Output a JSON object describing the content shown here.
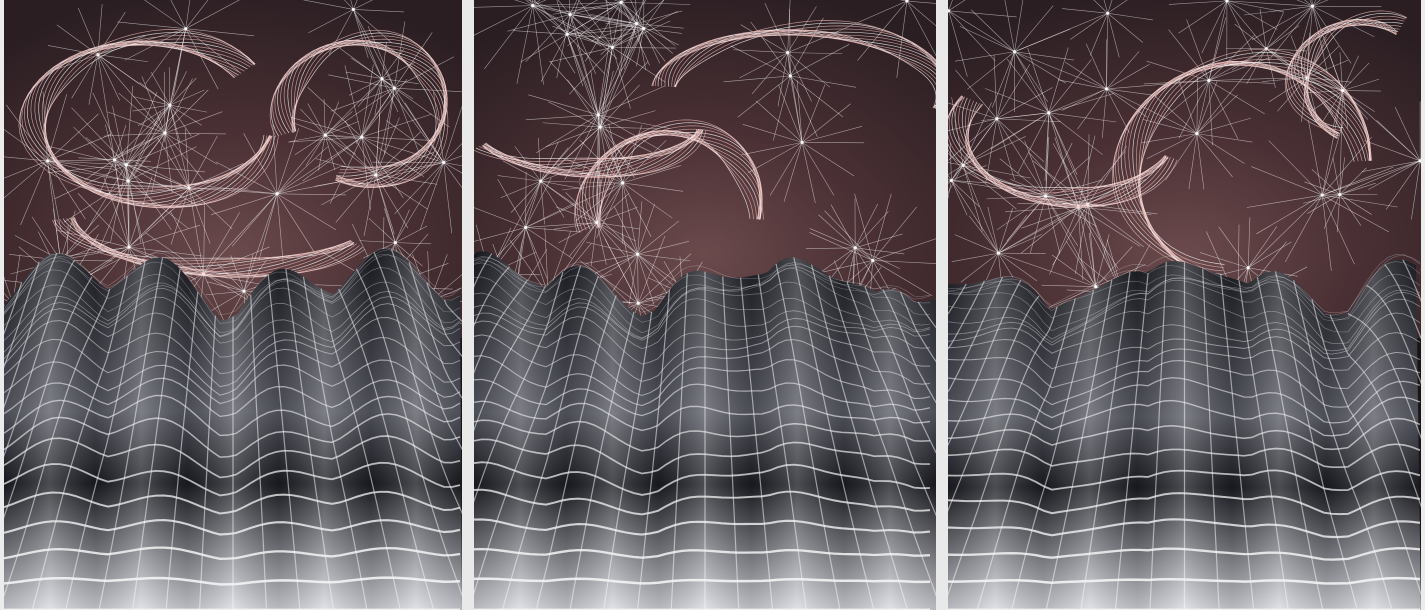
{
  "artwork": {
    "panels": [
      {
        "id": "left"
      },
      {
        "id": "center"
      },
      {
        "id": "right"
      }
    ],
    "colors": {
      "sky_top": "#2a1e22",
      "sky_mid": "#4a3034",
      "sky_glow": "#6b4a4c",
      "mesh_pink": "#e8b7b4",
      "mesh_white": "#ffffff",
      "terrain_dark": "#1b1c22",
      "terrain_mid": "#5a5c66",
      "terrain_light": "#d9dbe2",
      "grid_line": "#f4f4f6",
      "divider": "#e9e9e9"
    }
  }
}
